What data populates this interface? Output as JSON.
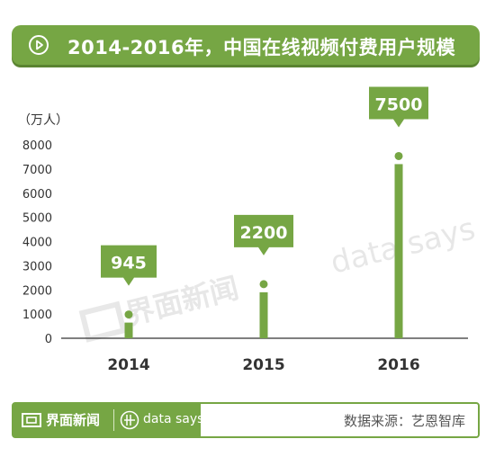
{
  "title": "2014-2016年，中国在线视频付费用户规模",
  "footer": {
    "brand": "界面新闻",
    "tagline": "data says",
    "source": "数据来源：艺恩智库"
  },
  "watermark": {
    "brand": "界面新闻",
    "tagline": "data says"
  },
  "colors": {
    "accent": "#76a644",
    "bar": "#76a644",
    "axis_text": "#333333",
    "grid": "#333333"
  },
  "icons": {
    "title": "play-icon",
    "logo": "jiemian-logo-icon",
    "datasays": "data-says-logo-icon"
  },
  "chart_data": {
    "type": "bar",
    "categories": [
      "2014",
      "2015",
      "2016"
    ],
    "values": [
      945,
      2200,
      7500
    ],
    "value_labels": [
      "945",
      "2200",
      "7500"
    ],
    "ylabel": "（万人）",
    "xlabel": "",
    "yticks": [
      "0",
      "1000",
      "2000",
      "3000",
      "4000",
      "5000",
      "6000",
      "7000",
      "8000"
    ],
    "ylim": [
      0,
      8000
    ],
    "grid": false,
    "legend": "none"
  }
}
